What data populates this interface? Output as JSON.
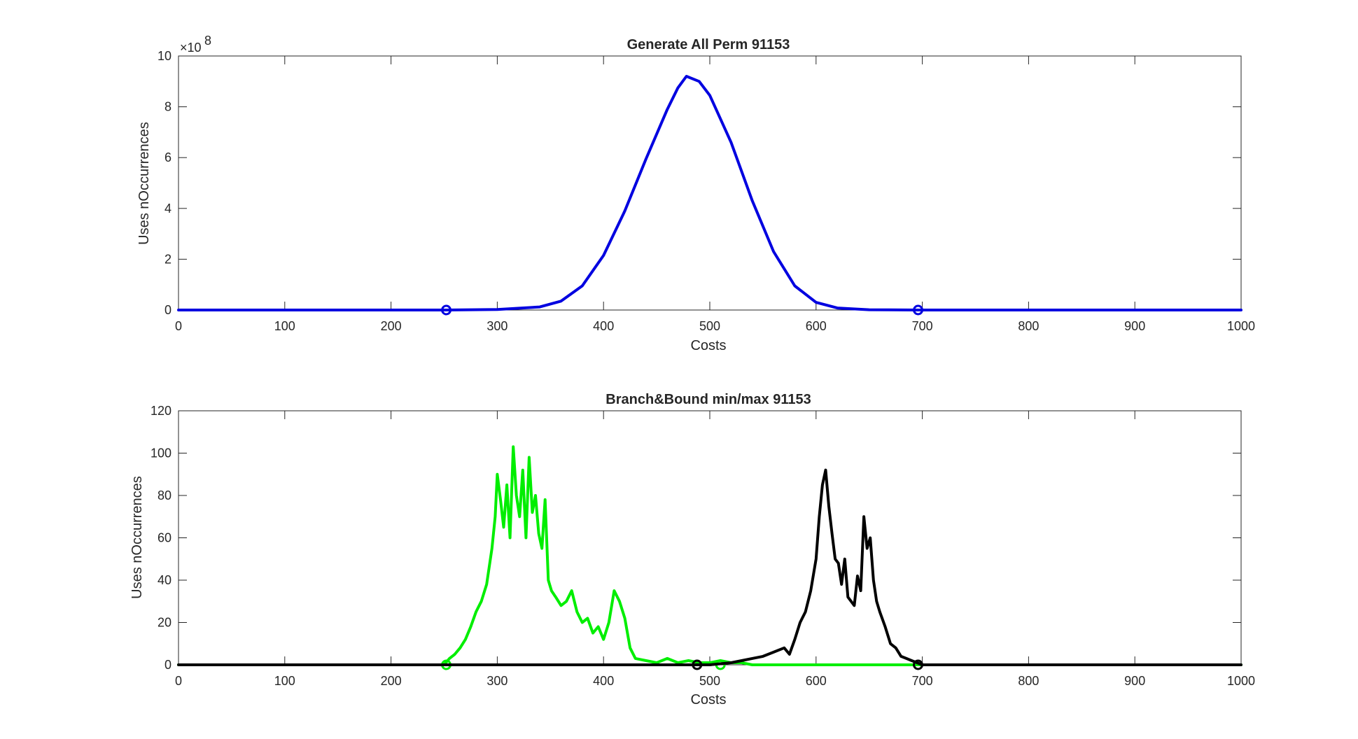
{
  "chart_data": [
    {
      "type": "line",
      "title": "Generate All Perm 91153",
      "xlabel": "Costs",
      "ylabel": "Uses nOccurrences",
      "xlim": [
        0,
        1000
      ],
      "ylim": [
        0,
        10
      ],
      "y_multiplier_label": "×10",
      "y_multiplier_exponent": "8",
      "xticks": [
        "0",
        "100",
        "200",
        "300",
        "400",
        "500",
        "600",
        "700",
        "800",
        "900",
        "1000"
      ],
      "yticks": [
        "0",
        "2",
        "4",
        "6",
        "8",
        "10"
      ],
      "grid": false,
      "series": [
        {
          "color": "#0000e0",
          "x": [
            0,
            252,
            300,
            340,
            360,
            380,
            400,
            420,
            440,
            460,
            470,
            478,
            490,
            500,
            520,
            540,
            560,
            580,
            600,
            620,
            650,
            696,
            1000
          ],
          "y": [
            0,
            0,
            0.02,
            0.12,
            0.35,
            0.95,
            2.15,
            3.9,
            5.95,
            7.9,
            8.75,
            9.2,
            9.0,
            8.45,
            6.6,
            4.3,
            2.3,
            0.95,
            0.3,
            0.08,
            0.01,
            0,
            0
          ],
          "markers": [
            [
              252,
              0
            ],
            [
              696,
              0
            ]
          ]
        }
      ]
    },
    {
      "type": "line",
      "title": "Branch&Bound min/max 91153",
      "xlabel": "Costs",
      "ylabel": "Uses nOccurrences",
      "xlim": [
        0,
        1000
      ],
      "ylim": [
        0,
        120
      ],
      "xticks": [
        "0",
        "100",
        "200",
        "300",
        "400",
        "500",
        "600",
        "700",
        "800",
        "900",
        "1000"
      ],
      "yticks": [
        "0",
        "20",
        "40",
        "60",
        "80",
        "100",
        "120"
      ],
      "grid": false,
      "series": [
        {
          "color": "#00ee00",
          "x": [
            0,
            250,
            255,
            260,
            265,
            270,
            275,
            280,
            285,
            290,
            295,
            298,
            300,
            303,
            306,
            309,
            312,
            315,
            318,
            321,
            324,
            327,
            330,
            333,
            336,
            339,
            342,
            345,
            348,
            351,
            355,
            360,
            365,
            370,
            375,
            380,
            385,
            390,
            395,
            400,
            405,
            410,
            415,
            420,
            425,
            430,
            440,
            450,
            460,
            470,
            480,
            490,
            500,
            510,
            520,
            530,
            540,
            700,
            1000
          ],
          "y": [
            0,
            0,
            3,
            5,
            8,
            12,
            18,
            25,
            30,
            38,
            55,
            70,
            90,
            78,
            65,
            85,
            60,
            103,
            80,
            70,
            92,
            60,
            98,
            72,
            80,
            62,
            55,
            78,
            40,
            35,
            32,
            28,
            30,
            35,
            25,
            20,
            22,
            15,
            18,
            12,
            20,
            35,
            30,
            22,
            8,
            3,
            2,
            1,
            3,
            1,
            2,
            1,
            1,
            2,
            1,
            1,
            0,
            0,
            0
          ],
          "markers": [
            [
              252,
              0
            ],
            [
              510,
              0
            ]
          ]
        },
        {
          "color": "#000000",
          "x": [
            0,
            488,
            500,
            520,
            530,
            540,
            550,
            560,
            570,
            575,
            580,
            585,
            590,
            595,
            600,
            603,
            606,
            609,
            612,
            615,
            618,
            621,
            624,
            627,
            630,
            633,
            636,
            639,
            642,
            645,
            648,
            651,
            654,
            657,
            660,
            665,
            670,
            675,
            680,
            685,
            690,
            695,
            700,
            1000
          ],
          "y": [
            0,
            0,
            0,
            1,
            2,
            3,
            4,
            6,
            8,
            5,
            12,
            20,
            25,
            35,
            50,
            70,
            85,
            92,
            75,
            62,
            50,
            48,
            38,
            50,
            32,
            30,
            28,
            42,
            35,
            70,
            55,
            60,
            40,
            30,
            25,
            18,
            10,
            8,
            4,
            3,
            2,
            1,
            0,
            0
          ],
          "markers": [
            [
              488,
              0
            ],
            [
              696,
              0
            ]
          ]
        }
      ]
    }
  ]
}
